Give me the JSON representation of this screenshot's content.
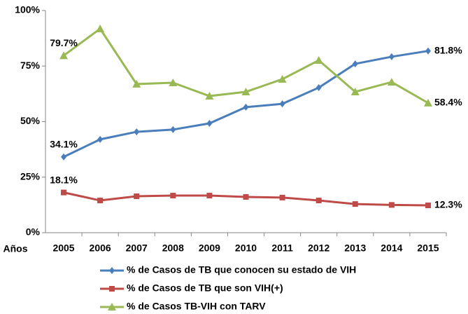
{
  "chart_data": {
    "type": "line",
    "x_label": "Años",
    "categories": [
      "2005",
      "2006",
      "2007",
      "2008",
      "2009",
      "2010",
      "2011",
      "2012",
      "2013",
      "2014",
      "2015"
    ],
    "ylim": [
      0,
      100
    ],
    "yticks": [
      {
        "value": 0,
        "label": "0%"
      },
      {
        "value": 25,
        "label": "25%"
      },
      {
        "value": 50,
        "label": "50%"
      },
      {
        "value": 75,
        "label": "75%"
      },
      {
        "value": 100,
        "label": "100%"
      }
    ],
    "grid": false,
    "legend": "bottom",
    "series": [
      {
        "name": "% de Casos de TB que conocen su estado de VIH",
        "color": "#4a7ebb",
        "marker": "diamond",
        "values": [
          34.1,
          42.0,
          45.4,
          46.4,
          49.2,
          56.5,
          58.0,
          65.3,
          76.0,
          79.2,
          81.8
        ],
        "value_labels": [
          "34.1%",
          null,
          null,
          null,
          null,
          null,
          null,
          null,
          null,
          null,
          "81.8%"
        ]
      },
      {
        "name": "% de Casos de TB que son VIH(+)",
        "color": "#be4b48",
        "marker": "square",
        "values": [
          18.1,
          14.5,
          16.4,
          16.7,
          16.7,
          16.1,
          15.8,
          14.5,
          12.9,
          12.5,
          12.3
        ],
        "value_labels": [
          "18.1%",
          null,
          null,
          null,
          null,
          null,
          null,
          null,
          null,
          null,
          "12.3%"
        ]
      },
      {
        "name": "% de Casos TB-VIH con TARV",
        "color": "#98b954",
        "marker": "triangle",
        "values": [
          79.7,
          91.8,
          66.9,
          67.5,
          61.5,
          63.4,
          69.1,
          77.6,
          63.4,
          67.8,
          58.4
        ],
        "value_labels": [
          "79.7%",
          null,
          null,
          null,
          null,
          null,
          null,
          null,
          null,
          null,
          "58.4%"
        ]
      }
    ]
  }
}
